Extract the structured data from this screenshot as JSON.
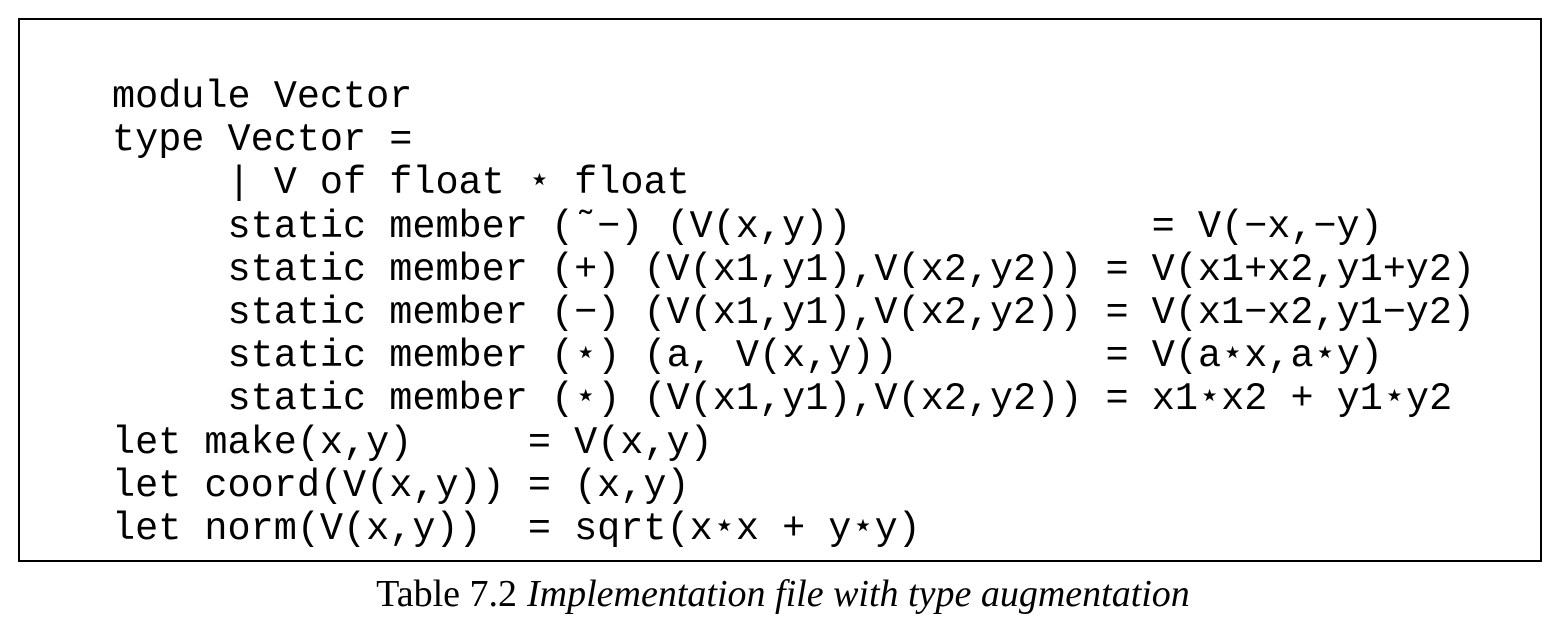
{
  "code": {
    "lines": [
      "module Vector",
      "type Vector =",
      "     | V of float ⋆ float",
      "     static member (˜−) (V(x,y))             = V(−x,−y)",
      "     static member (+) (V(x1,y1),V(x2,y2)) = V(x1+x2,y1+y2)",
      "     static member (−) (V(x1,y1),V(x2,y2)) = V(x1−x2,y1−y2)",
      "     static member (⋆) (a, V(x,y))         = V(a⋆x,a⋆y)",
      "     static member (⋆) (V(x1,y1),V(x2,y2)) = x1⋆x2 + y1⋆y2",
      "let make(x,y)     = V(x,y)",
      "let coord(V(x,y)) = (x,y)",
      "let norm(V(x,y))  = sqrt(x⋆x + y⋆y)"
    ]
  },
  "caption": {
    "label": "Table 7.2",
    "title": "Implementation file with type augmentation"
  }
}
